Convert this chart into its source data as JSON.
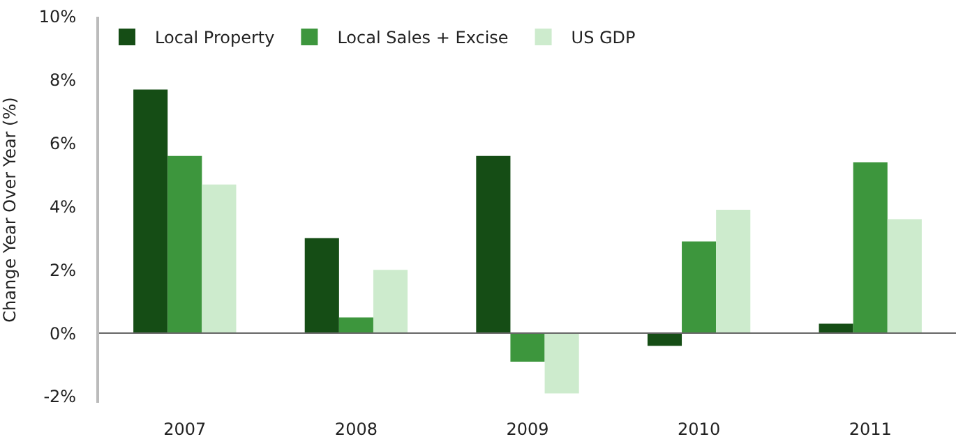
{
  "chart_data": {
    "type": "bar",
    "ylabel": "Change Year Over Year (%)",
    "categories": [
      "2007",
      "2008",
      "2009",
      "2010",
      "2011"
    ],
    "series": [
      {
        "name": "Local Property",
        "color": "#154d15",
        "values": [
          7.7,
          3.0,
          5.6,
          -0.4,
          0.3
        ]
      },
      {
        "name": "Local Sales + Excise",
        "color": "#3d963d",
        "values": [
          5.6,
          0.5,
          -0.9,
          2.9,
          5.4
        ]
      },
      {
        "name": "US GDP",
        "color": "#cdebcd",
        "values": [
          4.7,
          2.0,
          -1.9,
          3.9,
          3.6
        ]
      }
    ],
    "ylim": [
      -2.2,
      10
    ],
    "yticks": [
      {
        "value": -2,
        "label": "-2%"
      },
      {
        "value": 0,
        "label": "0%"
      },
      {
        "value": 2,
        "label": "2%"
      },
      {
        "value": 4,
        "label": "4%"
      },
      {
        "value": 6,
        "label": "6%"
      },
      {
        "value": 8,
        "label": "8%"
      },
      {
        "value": 10,
        "label": "10%"
      }
    ],
    "ref_lines": [
      {
        "axis": "y",
        "value": 0,
        "color": "#666666"
      }
    ],
    "legend": "top left"
  }
}
